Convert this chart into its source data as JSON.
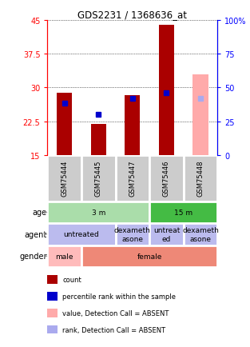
{
  "title": "GDS2231 / 1368636_at",
  "samples": [
    "GSM75444",
    "GSM75445",
    "GSM75447",
    "GSM75446",
    "GSM75448"
  ],
  "ylim": [
    15,
    45
  ],
  "yticks": [
    15,
    22.5,
    30,
    37.5,
    45
  ],
  "ytick_labels": [
    "15",
    "22.5",
    "30",
    "37.5",
    "45"
  ],
  "y2lim": [
    0,
    100
  ],
  "y2ticks": [
    0,
    25,
    50,
    75,
    100
  ],
  "y2tick_labels": [
    "0",
    "25",
    "50",
    "75",
    "100%"
  ],
  "bar_values": [
    28.8,
    21.9,
    28.3,
    44.0,
    null
  ],
  "bar_color": "#aa0000",
  "absent_bar_values": [
    null,
    null,
    null,
    null,
    33.0
  ],
  "absent_bar_color": "#ffaaaa",
  "percentile_values": [
    26.5,
    24.0,
    27.5,
    28.8,
    null
  ],
  "percentile_color": "#0000cc",
  "absent_percentile_values": [
    null,
    null,
    null,
    null,
    27.5
  ],
  "absent_percentile_color": "#aaaaee",
  "age_groups": [
    {
      "label": "3 m",
      "start": 0,
      "end": 3,
      "color": "#aaddaa"
    },
    {
      "label": "15 m",
      "start": 3,
      "end": 5,
      "color": "#44bb44"
    }
  ],
  "agent_groups": [
    {
      "label": "untreated",
      "start": 0,
      "end": 2,
      "color": "#bbbbee"
    },
    {
      "label": "dexameth\nasone",
      "start": 2,
      "end": 3,
      "color": "#bbbbee"
    },
    {
      "label": "untreat\ned",
      "start": 3,
      "end": 4,
      "color": "#bbbbee"
    },
    {
      "label": "dexameth\nasone",
      "start": 4,
      "end": 5,
      "color": "#bbbbee"
    }
  ],
  "gender_groups": [
    {
      "label": "male",
      "start": 0,
      "end": 1,
      "color": "#ffbbbb"
    },
    {
      "label": "female",
      "start": 1,
      "end": 5,
      "color": "#ee8877"
    }
  ],
  "row_labels": [
    "age",
    "agent",
    "gender"
  ],
  "legend_items": [
    {
      "color": "#aa0000",
      "label": "count"
    },
    {
      "color": "#0000cc",
      "label": "percentile rank within the sample"
    },
    {
      "color": "#ffaaaa",
      "label": "value, Detection Call = ABSENT"
    },
    {
      "color": "#aaaaee",
      "label": "rank, Detection Call = ABSENT"
    }
  ],
  "sample_box_color": "#cccccc",
  "bar_width": 0.45,
  "percentile_marker_size": 4
}
